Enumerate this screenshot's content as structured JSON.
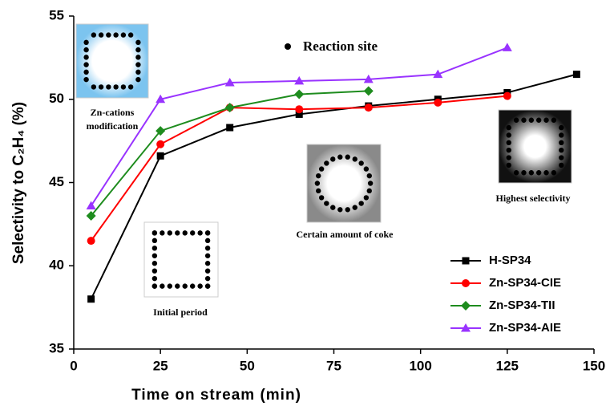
{
  "chart_data": {
    "type": "line",
    "xlabel": "Time on stream (min)",
    "ylabel": "Selectivity to C₂H₄ (%)",
    "xlim": [
      0,
      150
    ],
    "xticks": [
      0,
      25,
      50,
      75,
      100,
      125,
      150
    ],
    "ylim": [
      35,
      55
    ],
    "yticks": [
      35,
      40,
      45,
      50,
      55
    ],
    "legend": "lower right",
    "series": [
      {
        "name": "H-SP34",
        "color": "#000000",
        "marker": "square",
        "x": [
          5,
          25,
          45,
          65,
          85,
          105,
          125,
          145
        ],
        "values": [
          38.0,
          46.6,
          48.3,
          49.1,
          49.6,
          50.0,
          50.4,
          51.5
        ]
      },
      {
        "name": "Zn-SP34-CIE",
        "color": "#ff0000",
        "marker": "circle",
        "x": [
          5,
          25,
          45,
          65,
          85,
          105,
          125
        ],
        "values": [
          41.5,
          47.3,
          49.5,
          49.4,
          49.5,
          49.8,
          50.2
        ]
      },
      {
        "name": "Zn-SP34-TII",
        "color": "#1e8c1e",
        "marker": "diamond",
        "x": [
          5,
          25,
          45,
          65,
          85
        ],
        "values": [
          43.0,
          48.1,
          49.5,
          50.3,
          50.5
        ]
      },
      {
        "name": "Zn-SP34-AIE",
        "color": "#9933ff",
        "marker": "triangle",
        "x": [
          5,
          25,
          45,
          65,
          85,
          105,
          125
        ],
        "values": [
          43.6,
          50.0,
          51.0,
          51.1,
          51.2,
          51.5,
          53.1
        ]
      }
    ],
    "key_label": "Reaction site",
    "annotations": [
      [
        "Zn-cations",
        "modification"
      ],
      [
        "Initial  period"
      ],
      [
        "Certain  amount  of coke"
      ],
      [
        "Highest selectivity"
      ]
    ]
  }
}
